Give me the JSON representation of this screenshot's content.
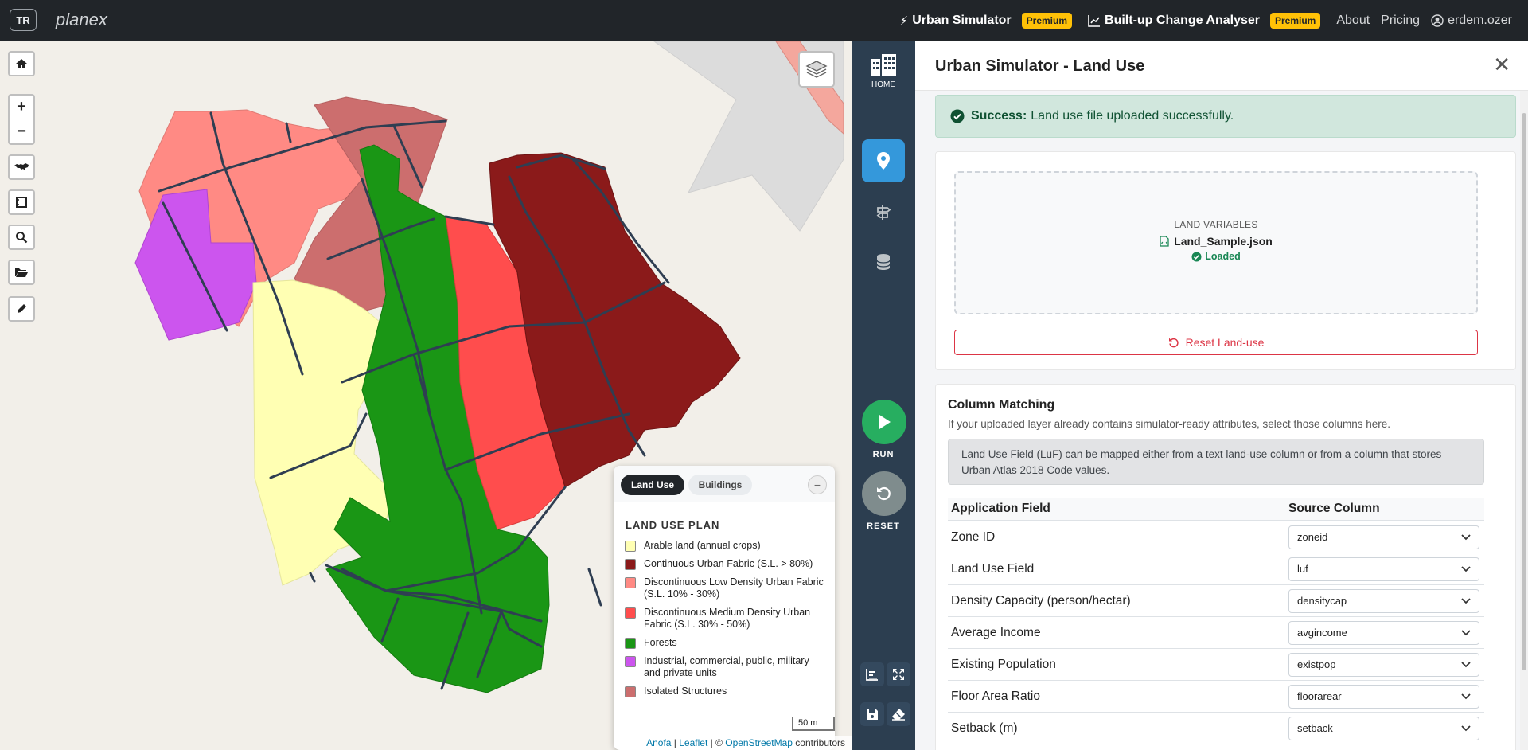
{
  "navbar": {
    "lang_badge": "TR",
    "brand": "planex",
    "urban_simulator": "Urban Simulator",
    "urban_simulator_badge": "Premium",
    "builtup": "Built-up Change Analyser",
    "builtup_badge": "Premium",
    "about": "About",
    "pricing": "Pricing",
    "user": "erdem.ozer"
  },
  "map": {
    "scale_label": "50 m",
    "attribution": {
      "anofa": "Anofa",
      "sep1": " | ",
      "leaflet": "Leaflet",
      "sep2": " | © ",
      "osm": "OpenStreetMap",
      "contrib": " contributors"
    },
    "legend": {
      "tab_land_use": "Land Use",
      "tab_buildings": "Buildings",
      "minimize": "−",
      "title": "LAND USE PLAN",
      "items": [
        {
          "label": "Arable land (annual crops)",
          "color": "#ffffb3"
        },
        {
          "label": "Continuous Urban Fabric (S.L. > 80%)",
          "color": "#8b1a1a"
        },
        {
          "label": "Discontinuous Low Density Urban Fabric (S.L. 10% - 30%)",
          "color": "#ff8a84"
        },
        {
          "label": "Discontinuous Medium Density Urban Fabric (S.L. 30% - 50%)",
          "color": "#ff4d4d"
        },
        {
          "label": "Forests",
          "color": "#1a9615"
        },
        {
          "label": "Industrial, commercial, public, military and private units",
          "color": "#cc55ee"
        },
        {
          "label": "Isolated Structures",
          "color": "#cc6e6e"
        }
      ]
    }
  },
  "sidebar": {
    "home_label": "HOME",
    "run_label": "RUN",
    "reset_label": "RESET",
    "colors": {
      "bg": "#2c3e50",
      "active": "#3498db",
      "run": "#27ae60",
      "reset": "#7f8c8d"
    }
  },
  "panel": {
    "title": "Urban Simulator - Land Use",
    "close": "✕",
    "alert": {
      "strong": "Success:",
      "text": "Land use file uploaded successfully."
    },
    "upload": {
      "label": "LAND VARIABLES",
      "file": "Land_Sample.json",
      "status": "Loaded",
      "reset_button": "Reset Land-use"
    },
    "column_matching": {
      "title": "Column Matching",
      "description": "If your uploaded layer already contains simulator-ready attributes, select those columns here.",
      "note": "Land Use Field (LuF) can be mapped either from a text land-use column or from a column that stores Urban Atlas 2018 Code values.",
      "headers": {
        "field": "Application Field",
        "source": "Source Column"
      },
      "rows": [
        {
          "field": "Zone ID",
          "source": "zoneid"
        },
        {
          "field": "Land Use Field",
          "source": "luf"
        },
        {
          "field": "Density Capacity (person/hectar)",
          "source": "densitycap"
        },
        {
          "field": "Average Income",
          "source": "avgincome"
        },
        {
          "field": "Existing Population",
          "source": "existpop"
        },
        {
          "field": "Floor Area Ratio",
          "source": "floorarear"
        },
        {
          "field": "Setback (m)",
          "source": "setback"
        }
      ]
    }
  }
}
